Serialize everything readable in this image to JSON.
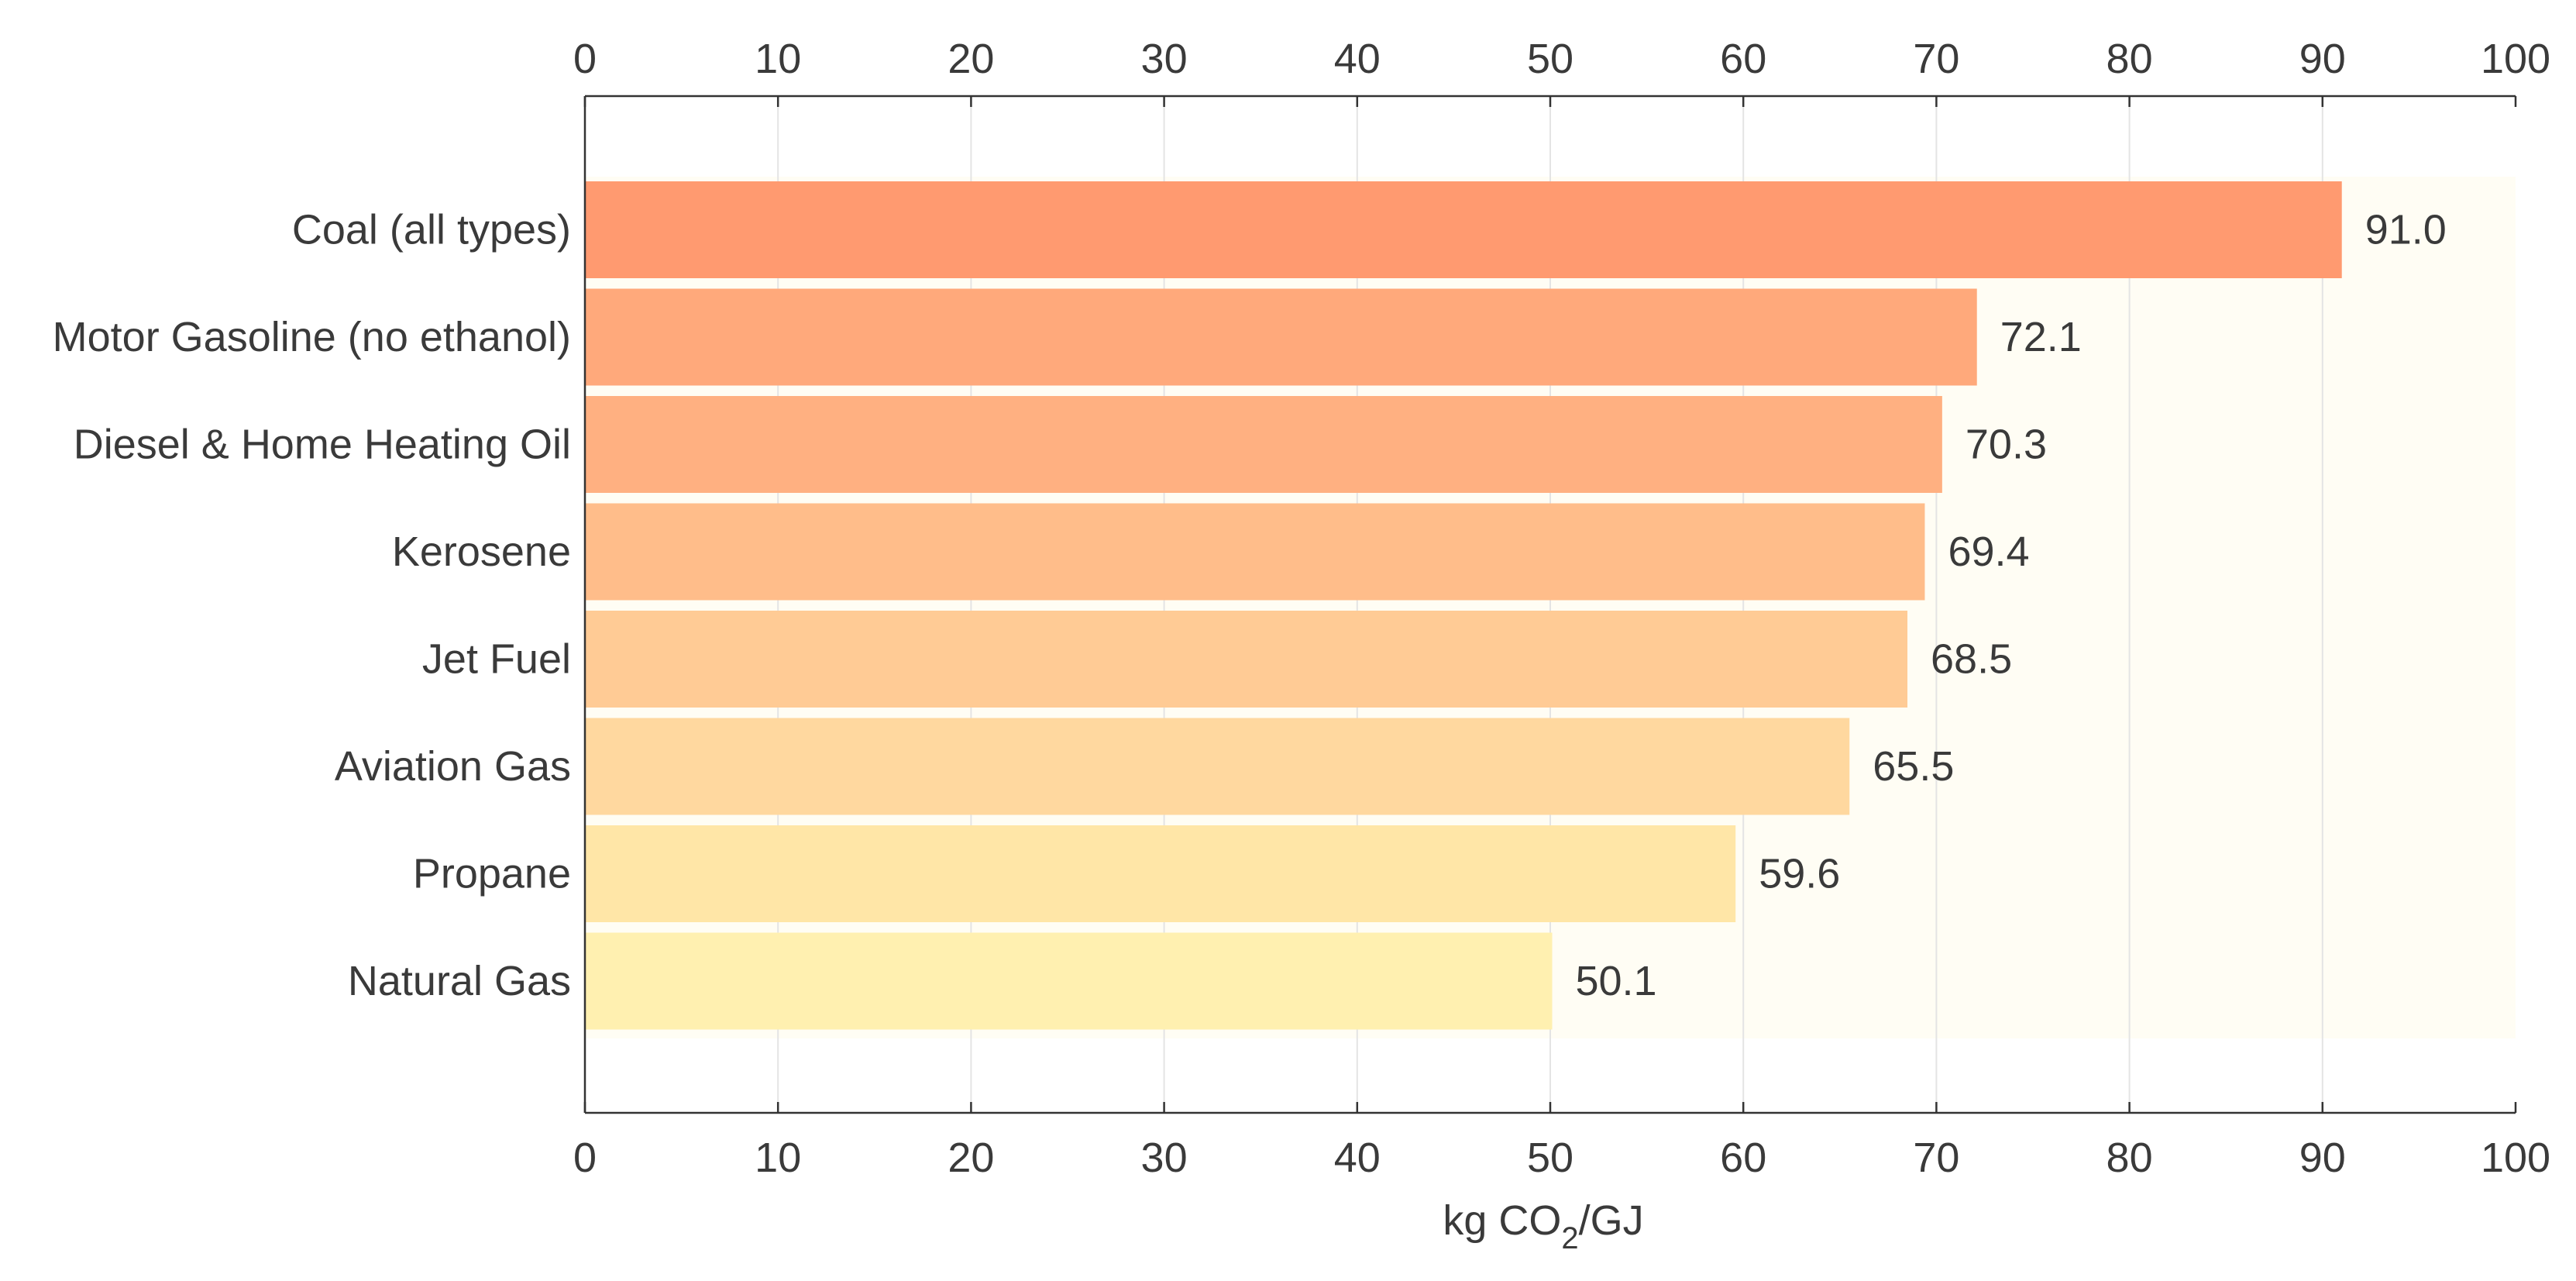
{
  "chart_data": {
    "type": "bar",
    "orientation": "horizontal",
    "categories": [
      "Coal (all types)",
      "Motor Gasoline (no ethanol)",
      "Diesel & Home Heating Oil",
      "Kerosene",
      "Jet Fuel",
      "Aviation Gas",
      "Propane",
      "Natural Gas"
    ],
    "values": [
      91.0,
      72.1,
      70.3,
      69.4,
      68.5,
      65.5,
      59.6,
      50.1
    ],
    "value_labels": [
      "91.0",
      "72.1",
      "70.3",
      "69.4",
      "68.5",
      "65.5",
      "59.6",
      "50.1"
    ],
    "bar_colors": [
      "#ff9a70",
      "#ffa97b",
      "#ffb081",
      "#ffbd8a",
      "#ffcb95",
      "#ffd89f",
      "#ffe6a7",
      "#fff0b0"
    ],
    "title": "",
    "xlabel": {
      "prefix": "kg CO",
      "subscript": "2",
      "suffix": "/GJ"
    },
    "ylabel": "",
    "xlim": [
      0,
      100
    ],
    "xticks": [
      0,
      10,
      20,
      30,
      40,
      50,
      60,
      70,
      80,
      90,
      100
    ],
    "tick_labels_top": true,
    "tick_labels_bottom": true,
    "grid": "vertical",
    "background_band_color": "#fffdf4",
    "axis_color": "#333333",
    "grid_color": "#e4e4e4",
    "text_color": "#3a3a3a"
  }
}
